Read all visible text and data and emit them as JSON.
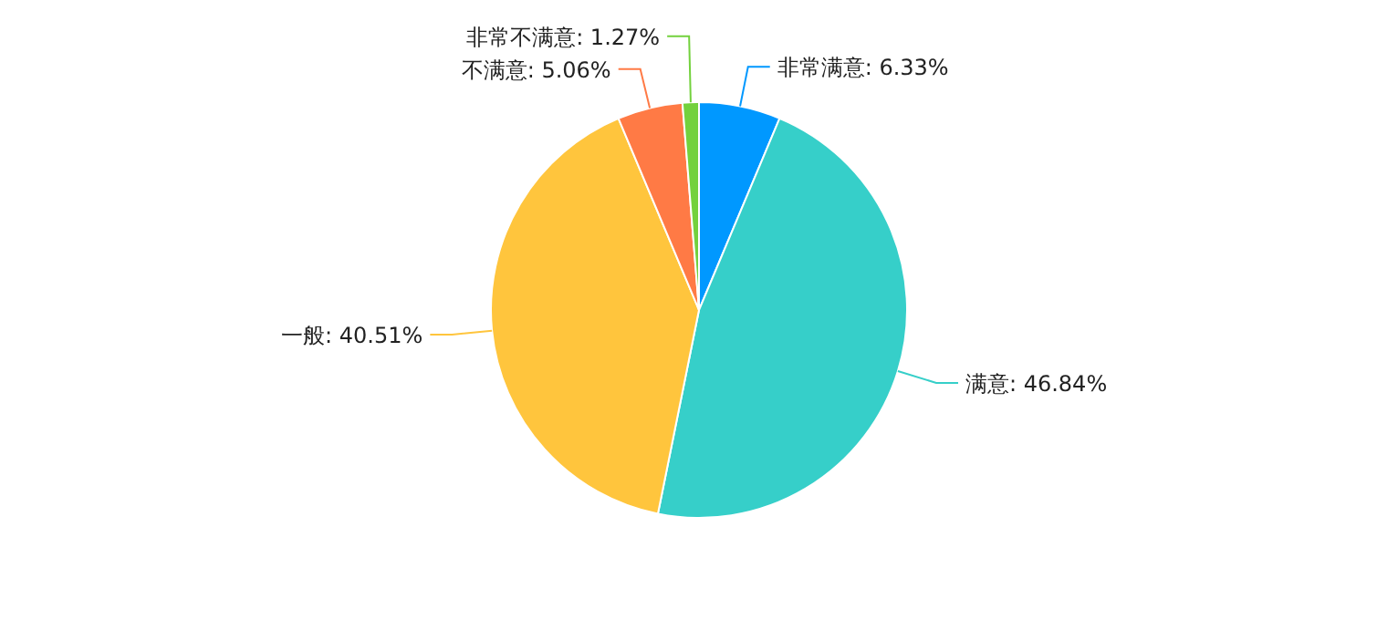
{
  "chart_data": {
    "type": "pie",
    "categories": [
      "非常满意",
      "满意",
      "一般",
      "不满意",
      "非常不满意"
    ],
    "values": [
      6.33,
      46.84,
      40.51,
      5.06,
      1.27
    ],
    "value_labels": [
      "6.33%",
      "46.84%",
      "40.51%",
      "5.06%",
      "1.27%"
    ],
    "colors": [
      "#0098ff",
      "#36cfc9",
      "#ffc53d",
      "#ff7a45",
      "#73d13d"
    ]
  }
}
